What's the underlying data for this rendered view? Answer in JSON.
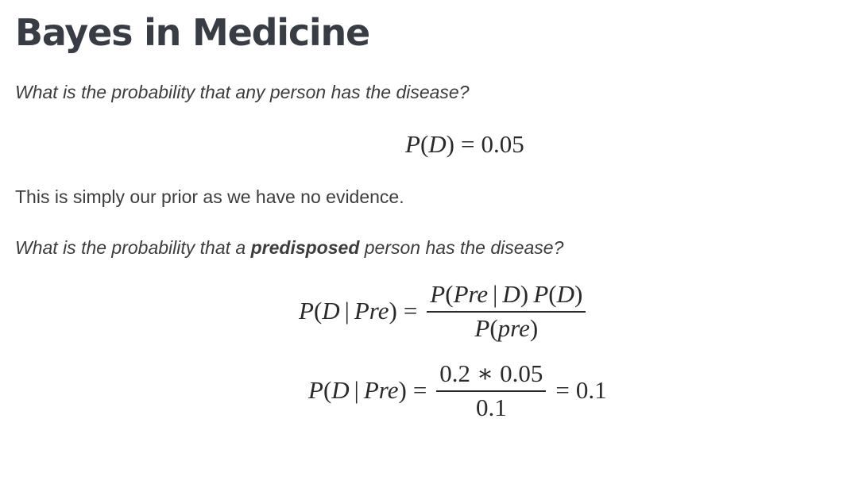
{
  "slide": {
    "title": "Bayes in Medicine",
    "question1": "What is the probability that any person has the disease?",
    "eq1": {
      "lhs_fn": "P",
      "lhs_open": "(",
      "lhs_var": "D",
      "lhs_close": ")",
      "equals": "=",
      "rhs": "0.05"
    },
    "paragraph1": "This is simply our prior as we have no evidence.",
    "question2": {
      "before": "What is the probability that a ",
      "bold": "predisposed",
      "after": " person has the disease?"
    },
    "eq2": {
      "lhs_fn": "P",
      "lhs_open": "(",
      "lhs_var": "D",
      "lhs_bar": "|",
      "lhs_given": "Pre",
      "lhs_close": ")",
      "equals": "=",
      "num_fn1": "P",
      "num_open1": "(",
      "num_var1": "Pre",
      "num_bar": "|",
      "num_var2": "D",
      "num_close1": ")",
      "num_fn2": "P",
      "num_open2": "(",
      "num_var3": "D",
      "num_close2": ")",
      "den_fn": "P",
      "den_open": "(",
      "den_var": "pre",
      "den_close": ")"
    },
    "eq3": {
      "lhs_fn": "P",
      "lhs_open": "(",
      "lhs_var": "D",
      "lhs_bar": "|",
      "lhs_given": "Pre",
      "lhs_close": ")",
      "equals": "=",
      "num_a": "0.2",
      "num_op": "∗",
      "num_b": "0.05",
      "den": "0.1",
      "equals2": "=",
      "result": "0.1"
    }
  }
}
